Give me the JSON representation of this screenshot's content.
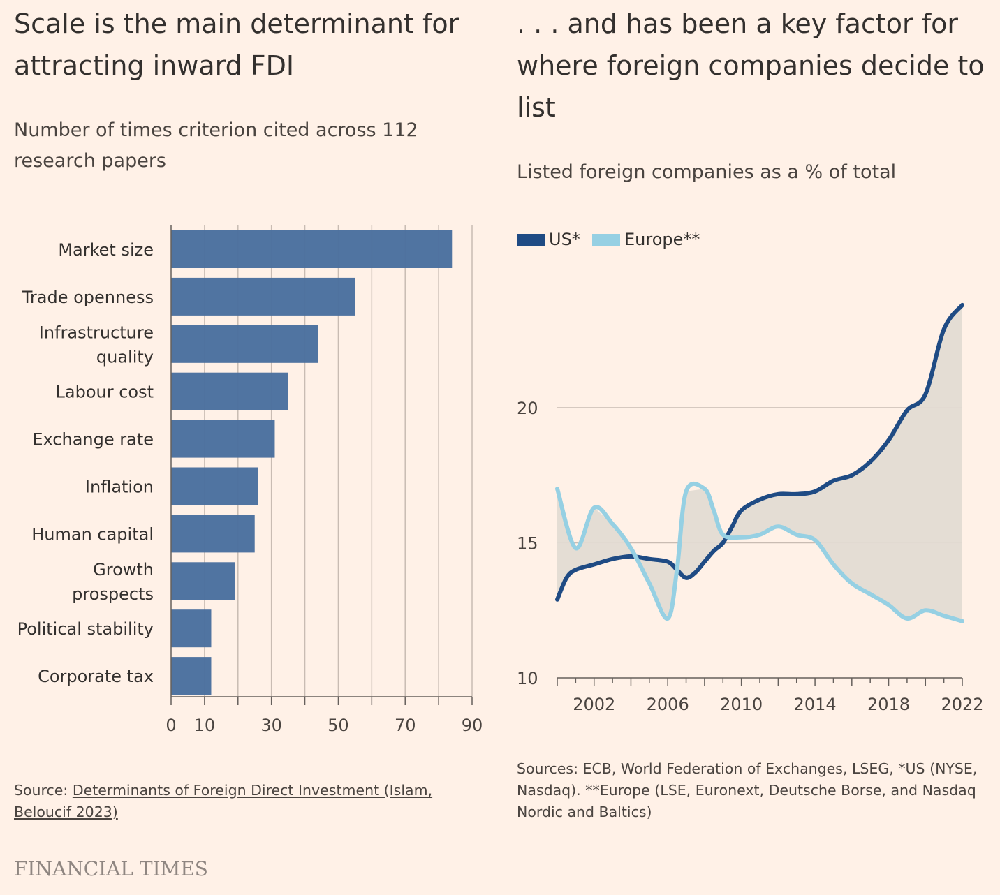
{
  "left": {
    "title": "Scale is the main determinant for attracting inward FDI",
    "subtitle": "Number of times criterion cited across 112 research papers",
    "source_prefix": "Source: ",
    "source_link": "Determinants of Foreign Direct Investment (Islam, Beloucif 2023)"
  },
  "right": {
    "title": ". . . and has been a key factor for where foreign companies decide to list",
    "subtitle": "Listed foreign companies as a % of total",
    "source": "Sources: ECB, World Federation of Exchanges, LSEG, *US (NYSE, Nasdaq). **Europe (LSE, Euronext, Deutsche Borse, and Nasdaq Nordic and Baltics)"
  },
  "brand": "FINANCIAL TIMES",
  "colors": {
    "background": "#fff1e7",
    "bar": "#4a6f9e",
    "us": "#1f4b84",
    "europe": "#96d0e3",
    "gap_fill": "#e3dbd3",
    "grid": "#c9bcb3",
    "text": "#33302e"
  },
  "chart_data": [
    {
      "type": "bar",
      "orientation": "horizontal",
      "categories": [
        [
          "Market size"
        ],
        [
          "Trade openness"
        ],
        [
          "Infrastructure",
          "quality"
        ],
        [
          "Labour cost"
        ],
        [
          "Exchange rate"
        ],
        [
          "Inflation"
        ],
        [
          "Human capital"
        ],
        [
          "Growth",
          "prospects"
        ],
        [
          "Political stability"
        ],
        [
          "Corporate tax"
        ]
      ],
      "values": [
        84,
        55,
        44,
        35,
        31,
        26,
        25,
        19,
        12,
        12
      ],
      "xlim": [
        0,
        90
      ],
      "xticks": [
        0,
        10,
        30,
        50,
        70,
        90
      ],
      "grid_values": [
        0,
        10,
        20,
        30,
        40,
        50,
        60,
        70,
        80,
        90
      ],
      "grid": true
    },
    {
      "type": "line",
      "fill_between": true,
      "legend_position": "top-left",
      "xlim": [
        2000,
        2022
      ],
      "xticks": [
        2002,
        2006,
        2010,
        2014,
        2018,
        2022
      ],
      "ylim": [
        10,
        24
      ],
      "yticks": [
        10,
        15,
        20
      ],
      "series": [
        {
          "name": "US*",
          "x": [
            2000,
            2000.5,
            2001,
            2002,
            2003,
            2004,
            2005,
            2006,
            2006.5,
            2007,
            2007.5,
            2008,
            2008.5,
            2009,
            2009.5,
            2010,
            2011,
            2012,
            2013,
            2014,
            2015,
            2016,
            2017,
            2018,
            2019,
            2020,
            2021,
            2022
          ],
          "y": [
            12.9,
            13.7,
            14.0,
            14.2,
            14.4,
            14.5,
            14.4,
            14.3,
            14.0,
            13.7,
            13.9,
            14.3,
            14.7,
            15.0,
            15.6,
            16.2,
            16.6,
            16.8,
            16.8,
            16.9,
            17.3,
            17.5,
            18.0,
            18.8,
            19.9,
            20.5,
            22.9,
            23.8
          ]
        },
        {
          "name": "Europe**",
          "x": [
            2000,
            2001,
            2002,
            2003,
            2004,
            2005,
            2006,
            2006.5,
            2007,
            2008,
            2008.5,
            2009,
            2010,
            2011,
            2012,
            2013,
            2014,
            2015,
            2016,
            2017,
            2018,
            2019,
            2020,
            2021,
            2022
          ],
          "y": [
            17.0,
            14.8,
            16.3,
            15.7,
            14.8,
            13.5,
            12.2,
            14.0,
            16.9,
            17.0,
            16.2,
            15.3,
            15.2,
            15.3,
            15.6,
            15.3,
            15.1,
            14.2,
            13.5,
            13.1,
            12.7,
            12.2,
            12.5,
            12.3,
            12.1
          ]
        }
      ]
    }
  ]
}
